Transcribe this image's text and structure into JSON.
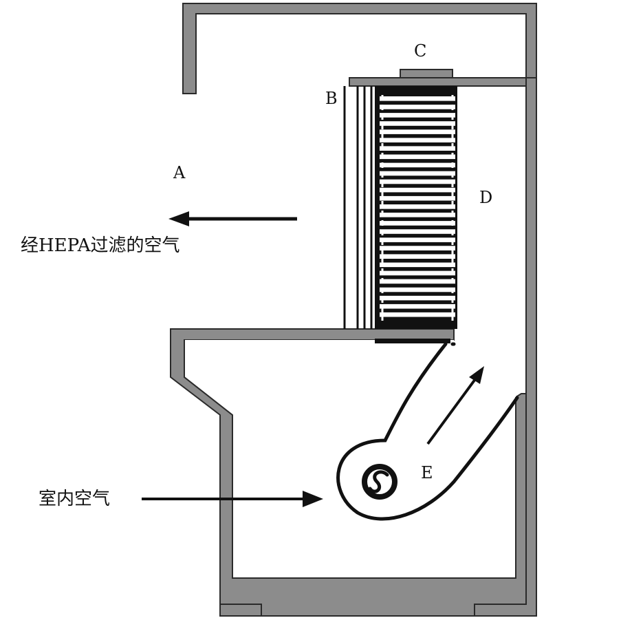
{
  "labels": {
    "a": "A",
    "b": "B",
    "c": "C",
    "d": "D",
    "e": "E"
  },
  "captions": {
    "filtered_air": "经HEPA过滤的空气",
    "room_air": "室内空气"
  },
  "colors": {
    "wall_fill": "#8c8c8c",
    "wall_stroke": "#2a2a2a",
    "ink": "#111111",
    "background": "#ffffff"
  },
  "filter": {
    "slat_count": 27
  }
}
